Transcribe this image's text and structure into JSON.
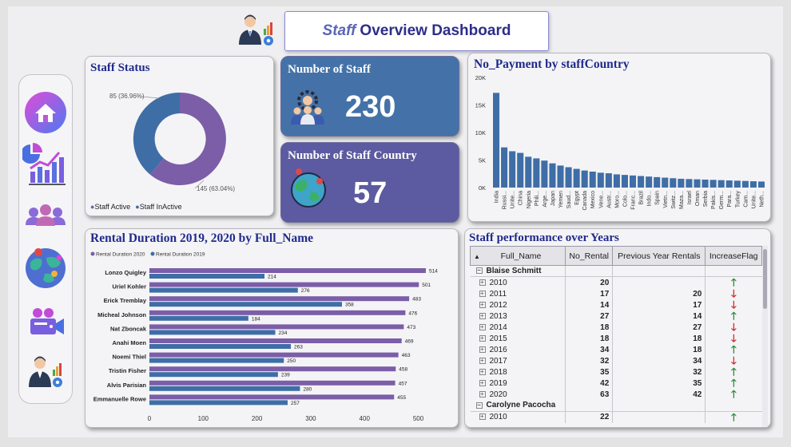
{
  "header": {
    "title_italic": "Staff",
    "title_rest": "Overview Dashboard"
  },
  "nav": {
    "items": [
      {
        "name": "home-icon"
      },
      {
        "name": "analytics-icon"
      },
      {
        "name": "people-icon"
      },
      {
        "name": "world-map-icon"
      },
      {
        "name": "camera-icon"
      },
      {
        "name": "staff-manager-icon"
      }
    ]
  },
  "staff_status": {
    "title": "Staff Status",
    "legend": [
      "Staff Active",
      "Staff InActive"
    ],
    "label_active": "145 (63.04%)",
    "label_inactive": "85 (36.96%)",
    "colors": {
      "active": "#7b5ea7",
      "inactive": "#3f6ea6"
    }
  },
  "kpi_staff": {
    "label": "Number of Staff",
    "value": "230",
    "color": "#4472a8"
  },
  "kpi_country": {
    "label": "Number of Staff Country",
    "value": "57",
    "color": "#5c5aa0"
  },
  "payment_chart": {
    "title": "No_Payment by staffCountry"
  },
  "rental_chart": {
    "title": "Rental Duration 2019, 2020 by Full_Name"
  },
  "performance": {
    "title": "Staff performance over Years",
    "columns": [
      "Full_Name",
      "No_Rental",
      "Previous Year Rentals",
      "IncreaseFlag"
    ],
    "groups": [
      {
        "name": "Blaise Schmitt",
        "rows": [
          {
            "year": "2010",
            "rental": "20",
            "prev": "",
            "flag": "up"
          },
          {
            "year": "2011",
            "rental": "17",
            "prev": "20",
            "flag": "down"
          },
          {
            "year": "2012",
            "rental": "14",
            "prev": "17",
            "flag": "down"
          },
          {
            "year": "2013",
            "rental": "27",
            "prev": "14",
            "flag": "up"
          },
          {
            "year": "2014",
            "rental": "18",
            "prev": "27",
            "flag": "down"
          },
          {
            "year": "2015",
            "rental": "18",
            "prev": "18",
            "flag": "down"
          },
          {
            "year": "2016",
            "rental": "34",
            "prev": "18",
            "flag": "up"
          },
          {
            "year": "2017",
            "rental": "32",
            "prev": "34",
            "flag": "down"
          },
          {
            "year": "2018",
            "rental": "35",
            "prev": "32",
            "flag": "up"
          },
          {
            "year": "2019",
            "rental": "42",
            "prev": "35",
            "flag": "up"
          },
          {
            "year": "2020",
            "rental": "63",
            "prev": "42",
            "flag": "up"
          }
        ]
      },
      {
        "name": "Carolyne Pacocha",
        "rows": [
          {
            "year": "2010",
            "rental": "22",
            "prev": "",
            "flag": "up"
          }
        ]
      }
    ]
  },
  "chart_data": [
    {
      "type": "pie",
      "title": "Staff Status",
      "categories": [
        "Staff Active",
        "Staff InActive"
      ],
      "values": [
        145,
        85
      ],
      "percent_labels": [
        "63.04%",
        "36.96%"
      ],
      "donut": true,
      "legend_position": "bottom"
    },
    {
      "type": "bar",
      "title": "No_Payment by staffCountry",
      "categories": [
        "India",
        "Russi...",
        "Unite...",
        "China",
        "Nigeria",
        "Phili...",
        "Arge...",
        "Japan",
        "Yemen",
        "Saud...",
        "Egypt",
        "Canada",
        "Mexico",
        "Vene...",
        "Austr...",
        "Moro...",
        "Colo...",
        "Franc...",
        "Brazil",
        "Indo...",
        "Spain",
        "Vietn...",
        "Switz...",
        "Maza...",
        "Israel",
        "Oman",
        "Serbia",
        "Pakis...",
        "Germ...",
        "Para...",
        "Turkey",
        "Cam...",
        "Unite...",
        "Neth..."
      ],
      "values": [
        17200,
        7300,
        6600,
        6300,
        5600,
        5300,
        4900,
        4400,
        4000,
        3700,
        3400,
        3100,
        2900,
        2700,
        2600,
        2400,
        2300,
        2200,
        2100,
        2000,
        1900,
        1800,
        1700,
        1600,
        1550,
        1500,
        1450,
        1400,
        1350,
        1300,
        1250,
        1200,
        1150,
        1100
      ],
      "yticks": [
        "0K",
        "5K",
        "10K",
        "15K",
        "20K"
      ],
      "ylim": [
        0,
        20000
      ],
      "xlabel": "",
      "ylabel": ""
    },
    {
      "type": "bar",
      "orientation": "horizontal",
      "title": "Rental Duration 2019, 2020 by Full_Name",
      "categories": [
        "Lonzo Quigley",
        "Uriel Kohler",
        "Erick Tremblay",
        "Micheal Johnson",
        "Nat Zboncak",
        "Anahi Moen",
        "Noemi Thiel",
        "Tristin Fisher",
        "Alvis Parisian",
        "Emmanuelle Rowe"
      ],
      "series": [
        {
          "name": "Rental Duration 2020",
          "color": "#7b5ea7",
          "values": [
            514,
            501,
            483,
            476,
            473,
            469,
            463,
            458,
            457,
            455
          ]
        },
        {
          "name": "Rental Duration 2019",
          "color": "#3f6ea6",
          "values": [
            214,
            276,
            358,
            184,
            234,
            263,
            250,
            239,
            280,
            257
          ]
        }
      ],
      "xticks": [
        "0",
        "100",
        "200",
        "300",
        "400",
        "500"
      ],
      "xlim": [
        0,
        520
      ],
      "legend_position": "top-left"
    }
  ]
}
